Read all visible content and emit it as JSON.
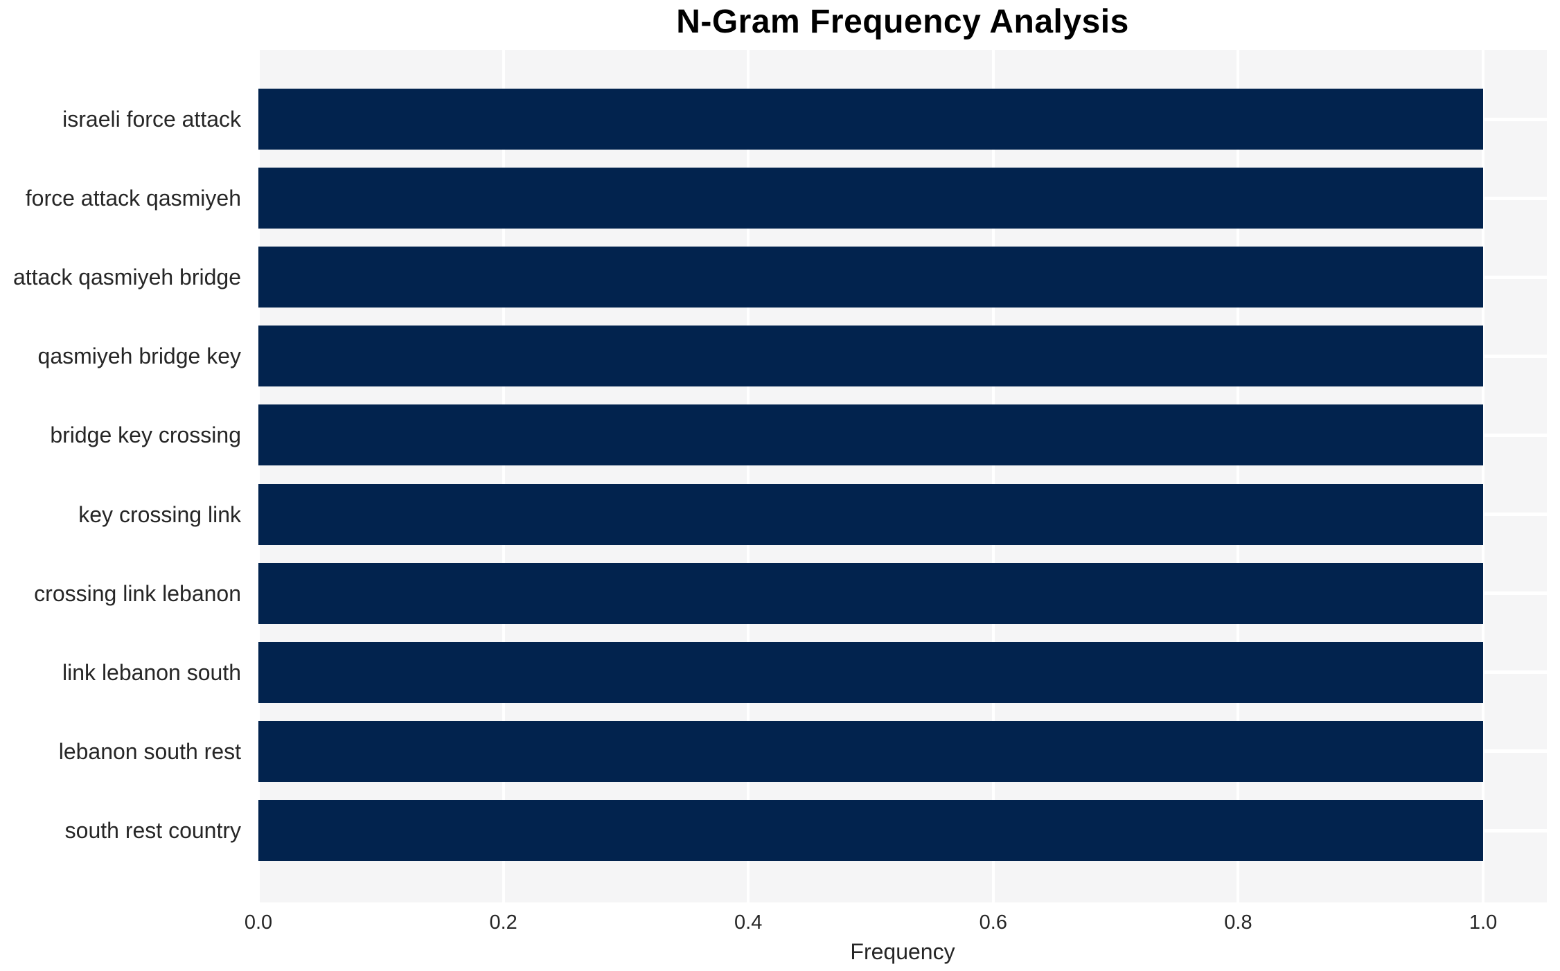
{
  "chart_data": {
    "type": "bar",
    "orientation": "horizontal",
    "title": "N-Gram Frequency Analysis",
    "xlabel": "Frequency",
    "ylabel": "",
    "categories": [
      "israeli force attack",
      "force attack qasmiyeh",
      "attack qasmiyeh bridge",
      "qasmiyeh bridge key",
      "bridge key crossing",
      "key crossing link",
      "crossing link lebanon",
      "link lebanon south",
      "lebanon south rest",
      "south rest country"
    ],
    "values": [
      1.0,
      1.0,
      1.0,
      1.0,
      1.0,
      1.0,
      1.0,
      1.0,
      1.0,
      1.0
    ],
    "xticks": [
      0.0,
      0.2,
      0.4,
      0.6,
      0.8,
      1.0
    ],
    "xtick_labels": [
      "0.0",
      "0.2",
      "0.4",
      "0.6",
      "0.8",
      "1.0"
    ],
    "xlim": [
      0,
      1.052
    ],
    "grid": "on",
    "legend": "none",
    "colors": {
      "bar": "#02234e",
      "plot_background": "#f5f5f6",
      "grid_line": "#ffffff",
      "title_text": "#000000",
      "axis_text": "#262626",
      "page_background": "#ffffff"
    }
  }
}
